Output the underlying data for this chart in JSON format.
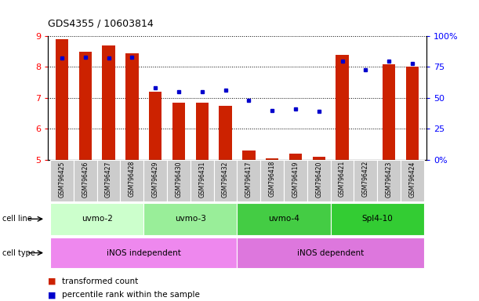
{
  "title": "GDS4355 / 10603814",
  "samples": [
    "GSM796425",
    "GSM796426",
    "GSM796427",
    "GSM796428",
    "GSM796429",
    "GSM796430",
    "GSM796431",
    "GSM796432",
    "GSM796417",
    "GSM796418",
    "GSM796419",
    "GSM796420",
    "GSM796421",
    "GSM796422",
    "GSM796423",
    "GSM796424"
  ],
  "transformed_count": [
    8.9,
    8.5,
    8.7,
    8.45,
    7.2,
    6.85,
    6.85,
    6.75,
    5.3,
    5.05,
    5.2,
    5.1,
    8.4,
    5.0,
    8.1,
    8.0
  ],
  "percentile_rank": [
    82,
    83,
    82,
    83,
    58,
    55,
    55,
    56,
    48,
    40,
    41,
    39,
    80,
    73,
    80,
    78
  ],
  "cell_line_groups": [
    {
      "label": "uvmo-2",
      "start": 0,
      "end": 3,
      "color": "#ccffcc"
    },
    {
      "label": "uvmo-3",
      "start": 4,
      "end": 7,
      "color": "#99ee99"
    },
    {
      "label": "uvmo-4",
      "start": 8,
      "end": 11,
      "color": "#44cc44"
    },
    {
      "label": "Spl4-10",
      "start": 12,
      "end": 15,
      "color": "#33cc33"
    }
  ],
  "cell_type_groups": [
    {
      "label": "iNOS independent",
      "start": 0,
      "end": 7,
      "color": "#ee88ee"
    },
    {
      "label": "iNOS dependent",
      "start": 8,
      "end": 15,
      "color": "#dd77dd"
    }
  ],
  "ylim_left": [
    5,
    9
  ],
  "ylim_right": [
    0,
    100
  ],
  "yticks_left": [
    5,
    6,
    7,
    8,
    9
  ],
  "yticks_right": [
    0,
    25,
    50,
    75,
    100
  ],
  "ytick_right_labels": [
    "0%",
    "25",
    "50",
    "75",
    "100%"
  ],
  "bar_color": "#cc2200",
  "dot_color": "#0000cc",
  "bar_width": 0.55,
  "label_box_color": "#cccccc",
  "cell_line_label": "cell line",
  "cell_type_label": "cell type",
  "legend_red_label": "transformed count",
  "legend_blue_label": "percentile rank within the sample"
}
